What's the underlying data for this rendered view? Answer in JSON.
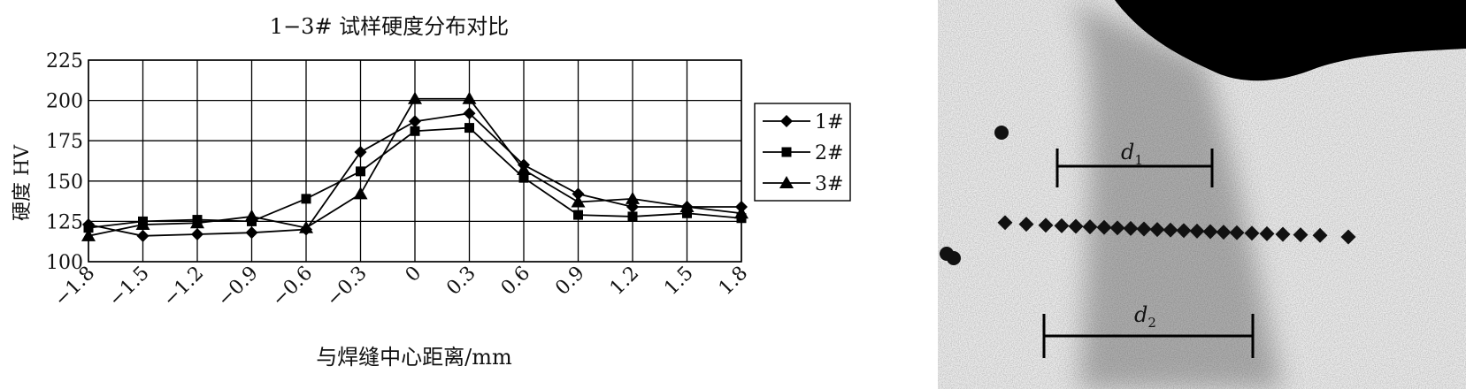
{
  "chart_data": {
    "type": "line",
    "title": "1−3# 试样硬度分布对比",
    "xlabel": "与焊缝中心距离/mm",
    "ylabel": "硬度 HV",
    "x": [
      -1.8,
      -1.5,
      -1.2,
      -0.9,
      -0.6,
      -0.3,
      0,
      0.3,
      0.6,
      0.9,
      1.2,
      1.5,
      1.8
    ],
    "x_tick_labels": [
      "−1.8",
      "−1.5",
      "−1.2",
      "−0.9",
      "−0.6",
      "−0.3",
      "0",
      "0.3",
      "0.6",
      "0.9",
      "1.2",
      "1.5",
      "1.8"
    ],
    "y_ticks": [
      100,
      125,
      150,
      175,
      200,
      225
    ],
    "y_tick_labels": [
      "100",
      "125",
      "150",
      "175",
      "200",
      "225"
    ],
    "ylim": [
      100,
      225
    ],
    "xlim": [
      -1.8,
      1.8
    ],
    "grid": true,
    "legend_position": "right",
    "series": [
      {
        "name": "1#",
        "marker": "diamond",
        "values": [
          123,
          116,
          117,
          118,
          120,
          168,
          187,
          192,
          160,
          142,
          134,
          134,
          134
        ]
      },
      {
        "name": "2#",
        "marker": "square",
        "values": [
          121,
          125,
          126,
          125,
          139,
          156,
          181,
          183,
          152,
          129,
          128,
          130,
          127
        ]
      },
      {
        "name": "3#",
        "marker": "triangle",
        "values": [
          116,
          123,
          124,
          128,
          121,
          142,
          201,
          201,
          157,
          137,
          139,
          134,
          130
        ]
      }
    ]
  },
  "micrograph": {
    "label_d1_base": "d",
    "label_d1_sub": "1",
    "label_d2_base": "d",
    "label_d2_sub": "2"
  }
}
